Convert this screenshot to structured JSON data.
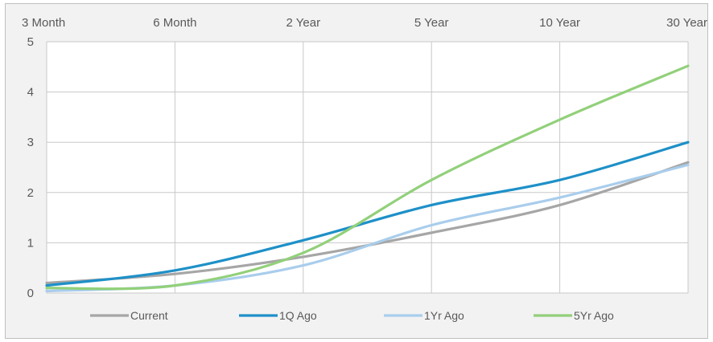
{
  "chart_data": {
    "type": "line",
    "title": "",
    "xlabel": "",
    "ylabel": "",
    "categories": [
      "3 Month",
      "6 Month",
      "2 Year",
      "5 Year",
      "10 Year",
      "30 Year"
    ],
    "ylim": [
      0,
      5
    ],
    "yticks": [
      0,
      1,
      2,
      3,
      4,
      5
    ],
    "x_axis_position": "top",
    "grid": true,
    "legend_position": "bottom",
    "series": [
      {
        "name": "Current",
        "color": "#a6a6a6",
        "values": [
          0.2,
          0.38,
          0.72,
          1.2,
          1.75,
          2.6
        ]
      },
      {
        "name": "1Q Ago",
        "color": "#1e90c8",
        "values": [
          0.15,
          0.45,
          1.05,
          1.75,
          2.25,
          3.0
        ]
      },
      {
        "name": "1Yr Ago",
        "color": "#a9cdec",
        "values": [
          0.04,
          0.15,
          0.55,
          1.35,
          1.9,
          2.55
        ]
      },
      {
        "name": "5Yr Ago",
        "color": "#92d07a",
        "values": [
          0.1,
          0.15,
          0.8,
          2.25,
          3.45,
          4.52
        ]
      }
    ]
  }
}
